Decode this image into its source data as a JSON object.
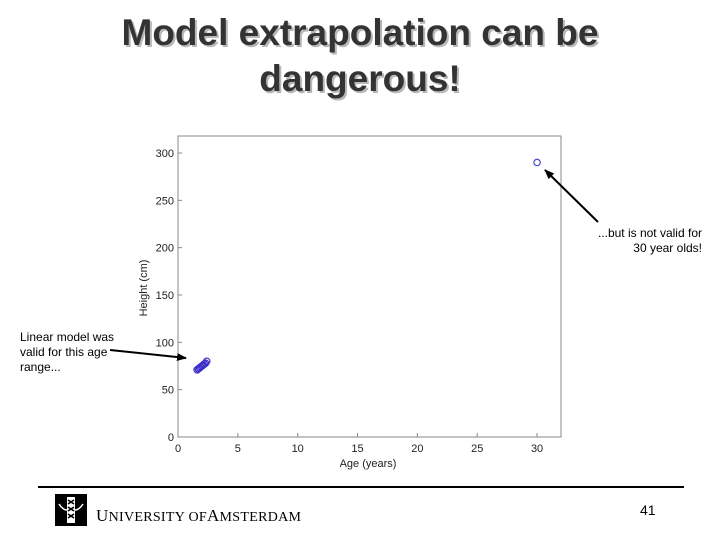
{
  "slide": {
    "title_line1": "Model extrapolation can be",
    "title_line2": "dangerous!",
    "annotation_left": "Linear model was valid for this age range...",
    "annotation_right": "...but is not valid for 30 year olds!",
    "footer": {
      "university_U": "U",
      "university_rest1": "NIVERSITY OF",
      "university_A": "A",
      "university_rest2": "MSTERDAM",
      "page_number": "41"
    }
  },
  "chart_data": {
    "type": "scatter",
    "xlabel": "Age (years)",
    "ylabel": "Height (cm)",
    "xlim": [
      0,
      32
    ],
    "ylim": [
      0,
      300
    ],
    "xticks": [
      0,
      5,
      10,
      15,
      20,
      25,
      30
    ],
    "yticks": [
      0,
      50,
      100,
      150,
      200,
      250,
      300
    ],
    "grid": false,
    "series": [
      {
        "marker": "circle",
        "color": "#3a2cc8",
        "x": [
          1.6,
          1.7,
          1.8,
          1.9,
          2.0,
          2.1,
          2.2,
          2.3,
          2.4
        ],
        "y": [
          71,
          72,
          73,
          74,
          75,
          76,
          77,
          78,
          80
        ]
      },
      {
        "marker": "circle",
        "color": "#4a4ad0",
        "x": [
          30
        ],
        "y": [
          290
        ]
      }
    ]
  }
}
